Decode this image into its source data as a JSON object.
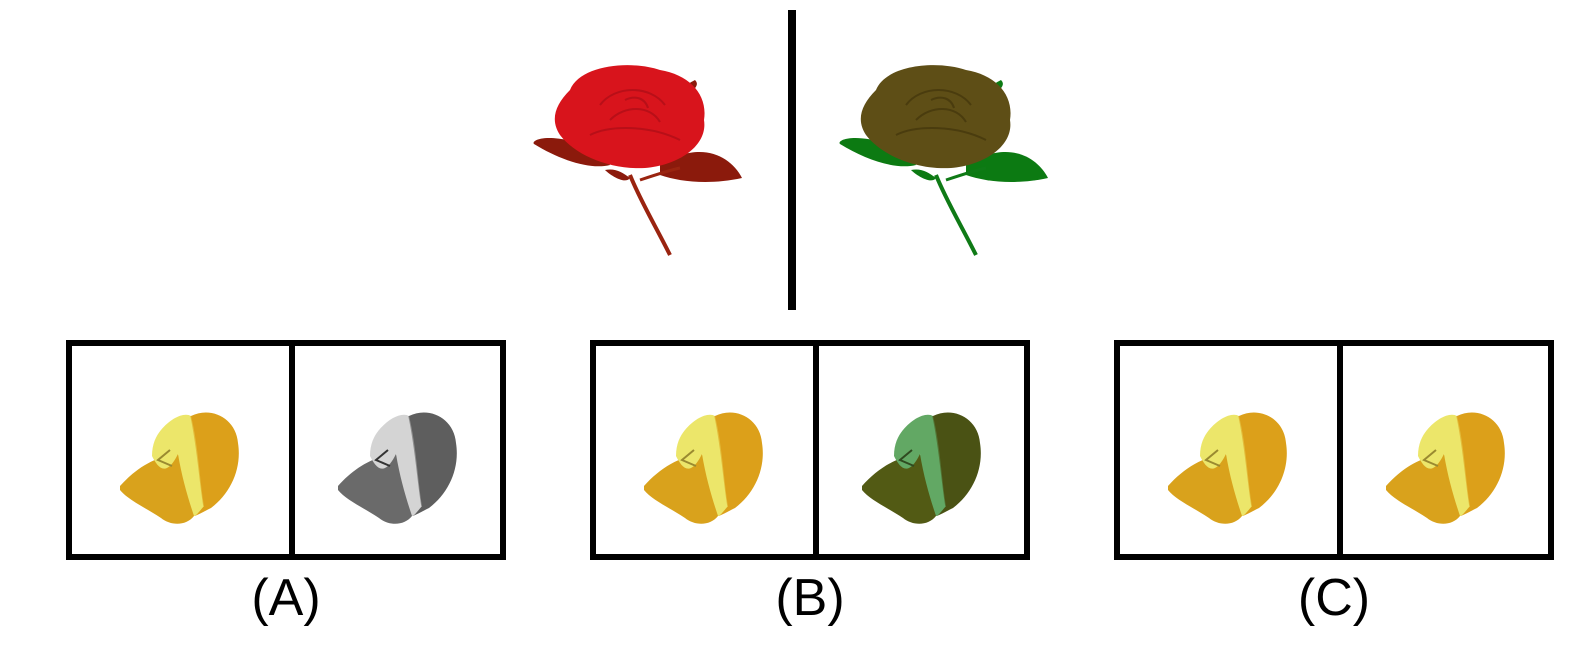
{
  "title": "",
  "reference_pair": {
    "left": {
      "icon": "red-rose-icon",
      "petal": "#d8141c",
      "petal_shade": "#b80f18",
      "leaf": "#8b1a0c",
      "stem": "#9a2410"
    },
    "right": {
      "icon": "olive-rose-icon",
      "petal": "#5e4e16",
      "petal_shade": "#4a3c0e",
      "leaf": "#0c7a12",
      "stem": "#0f7a16"
    }
  },
  "options": [
    {
      "label": "(A)",
      "left_cap": {
        "icon": "yellow-cap-icon",
        "crown": "#ece66a",
        "side": "#dca01a",
        "brim": "#d9a21c",
        "mark": "#9a8a30"
      },
      "right_cap": {
        "icon": "gray-cap-icon",
        "crown": "#d4d4d4",
        "side": "#5e5e5e",
        "brim": "#6a6a6a",
        "mark": "#333333"
      }
    },
    {
      "label": "(B)",
      "left_cap": {
        "icon": "yellow-cap-icon",
        "crown": "#ece66a",
        "side": "#dca01a",
        "brim": "#d9a21c",
        "mark": "#9a8a30"
      },
      "right_cap": {
        "icon": "green-cap-icon",
        "crown": "#62a864",
        "side": "#4a5214",
        "brim": "#525a14",
        "mark": "#2f4a20"
      }
    },
    {
      "label": "(C)",
      "left_cap": {
        "icon": "yellow-cap-icon",
        "crown": "#ece66a",
        "side": "#dca01a",
        "brim": "#d9a21c",
        "mark": "#9a8a30"
      },
      "right_cap": {
        "icon": "yellow-cap-icon",
        "crown": "#ece66a",
        "side": "#dca01a",
        "brim": "#d9a21c",
        "mark": "#9a8a30"
      }
    }
  ]
}
